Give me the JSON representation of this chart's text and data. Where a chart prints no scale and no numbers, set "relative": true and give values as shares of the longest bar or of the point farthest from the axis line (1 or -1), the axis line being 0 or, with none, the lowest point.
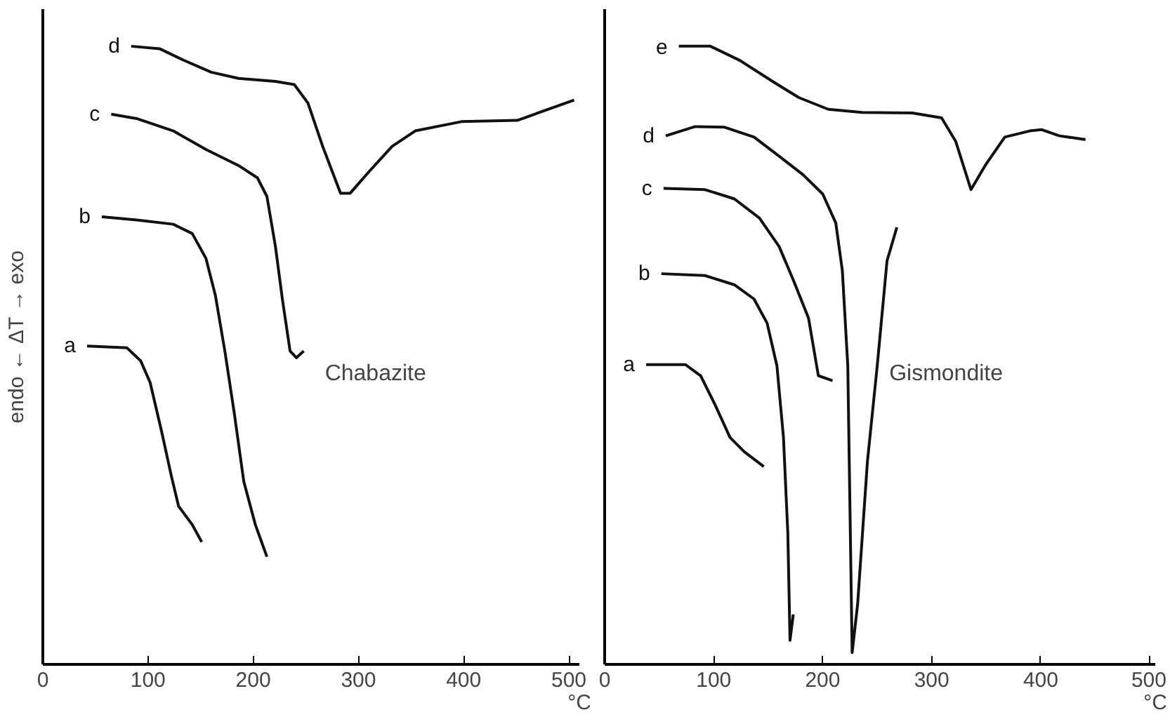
{
  "chart_data": [
    {
      "type": "line",
      "relative": true,
      "title": null,
      "ylabel": "endo ← ΔT → exo",
      "xlabel": "°C",
      "annotations": [
        "Chabazite"
      ],
      "xlim": [
        0,
        510
      ],
      "xticks": [
        0,
        100,
        200,
        300,
        400,
        500
      ],
      "grid": false,
      "marker": "none",
      "line_style": "solid",
      "tick_labels": "x",
      "series": [
        {
          "name": "a",
          "color": "#111111",
          "x": [
            42,
            80,
            93,
            102,
            113,
            122,
            129,
            142,
            151
          ],
          "values": [
            0.515,
            0.512,
            0.491,
            0.456,
            0.376,
            0.306,
            0.256,
            0.226,
            0.198
          ]
        },
        {
          "name": "b",
          "color": "#111111",
          "x": [
            56,
            89,
            124,
            142,
            155,
            164,
            173,
            182,
            191,
            202,
            213
          ],
          "values": [
            0.724,
            0.719,
            0.712,
            0.697,
            0.657,
            0.597,
            0.507,
            0.406,
            0.296,
            0.226,
            0.174
          ]
        },
        {
          "name": "c",
          "color": "#111111",
          "x": [
            65,
            89,
            124,
            155,
            186,
            204,
            213,
            221,
            228,
            235,
            241,
            248
          ],
          "values": [
            0.89,
            0.883,
            0.863,
            0.833,
            0.807,
            0.787,
            0.757,
            0.677,
            0.587,
            0.507,
            0.496,
            0.507
          ]
        },
        {
          "name": "d",
          "color": "#111111",
          "x": [
            84,
            111,
            133,
            160,
            186,
            221,
            239,
            252,
            266,
            283,
            292,
            310,
            332,
            354,
            398,
            451,
            505
          ],
          "values": [
            1.0,
            0.996,
            0.978,
            0.958,
            0.948,
            0.943,
            0.938,
            0.908,
            0.838,
            0.762,
            0.762,
            0.797,
            0.838,
            0.863,
            0.878,
            0.88,
            0.913
          ]
        }
      ]
    },
    {
      "type": "line",
      "relative": true,
      "title": null,
      "xlabel": "°C",
      "annotations": [
        "Gismondite"
      ],
      "xlim": [
        0,
        505
      ],
      "xticks": [
        0,
        100,
        200,
        300,
        400,
        500
      ],
      "grid": false,
      "marker": "none",
      "line_style": "solid",
      "tick_labels": "x",
      "series": [
        {
          "name": "a",
          "color": "#111111",
          "x": [
            38,
            74,
            88,
            101,
            115,
            128,
            146
          ],
          "values": [
            0.485,
            0.485,
            0.467,
            0.421,
            0.367,
            0.344,
            0.32
          ]
        },
        {
          "name": "b",
          "color": "#111111",
          "x": [
            52,
            92,
            119,
            137,
            149,
            158,
            164,
            168,
            170,
            173
          ],
          "values": [
            0.632,
            0.629,
            0.614,
            0.591,
            0.552,
            0.483,
            0.367,
            0.212,
            0.039,
            0.081
          ]
        },
        {
          "name": "c",
          "color": "#111111",
          "x": [
            54,
            92,
            119,
            142,
            160,
            173,
            187,
            196,
            209
          ],
          "values": [
            0.77,
            0.768,
            0.753,
            0.722,
            0.676,
            0.622,
            0.56,
            0.467,
            0.459
          ]
        },
        {
          "name": "d",
          "color": "#111111",
          "x": [
            56,
            83,
            110,
            137,
            160,
            182,
            200,
            212,
            218,
            223,
            225,
            227,
            232,
            241,
            250,
            259,
            268
          ],
          "values": [
            0.855,
            0.87,
            0.869,
            0.853,
            0.822,
            0.792,
            0.761,
            0.714,
            0.637,
            0.483,
            0.251,
            0.019,
            0.097,
            0.328,
            0.483,
            0.653,
            0.707
          ]
        },
        {
          "name": "e",
          "color": "#111111",
          "x": [
            68,
            97,
            124,
            155,
            178,
            205,
            236,
            282,
            309,
            322,
            336,
            349,
            367,
            390,
            401,
            417,
            441
          ],
          "values": [
            1.0,
            1.0,
            0.977,
            0.942,
            0.917,
            0.898,
            0.893,
            0.892,
            0.884,
            0.846,
            0.768,
            0.807,
            0.853,
            0.863,
            0.865,
            0.855,
            0.849
          ]
        }
      ]
    }
  ]
}
